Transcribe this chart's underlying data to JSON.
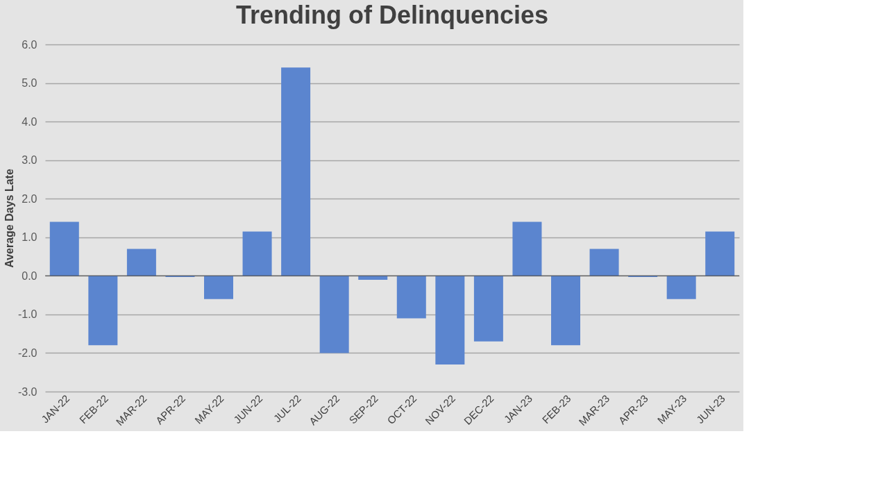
{
  "chart_data": {
    "type": "bar",
    "title": "Trending of Delinquencies",
    "ylabel": "Average Days Late",
    "categories": [
      "JAN-22",
      "FEB-22",
      "MAR-22",
      "APR-22",
      "MAY-22",
      "JUN-22",
      "JUL-22",
      "AUG-22",
      "SEP-22",
      "OCT-22",
      "NOV-22",
      "DEC-22",
      "JAN-23",
      "FEB-23",
      "MAR-23",
      "APR-23",
      "MAY-23",
      "JUN-23"
    ],
    "values": [
      1.4,
      -1.8,
      0.7,
      -0.03,
      -0.6,
      1.15,
      5.4,
      -2.0,
      -0.1,
      -1.1,
      -2.3,
      -1.7,
      1.4,
      -1.8,
      0.7,
      -0.03,
      -0.6,
      1.15
    ],
    "color": "#5b85cf",
    "ylim": [
      -3,
      6
    ],
    "yticks": [
      {
        "value": -3,
        "label": "-3.0"
      },
      {
        "value": -2,
        "label": "-2.0"
      },
      {
        "value": -1,
        "label": "-1.0"
      },
      {
        "value": 0,
        "label": "0.0"
      },
      {
        "value": 1,
        "label": "1.0"
      },
      {
        "value": 2,
        "label": "2.0"
      },
      {
        "value": 3,
        "label": "3.0"
      },
      {
        "value": 4,
        "label": "4.0"
      },
      {
        "value": 5,
        "label": "5.0"
      },
      {
        "value": 6,
        "label": "6.0"
      }
    ],
    "grid": "y"
  }
}
